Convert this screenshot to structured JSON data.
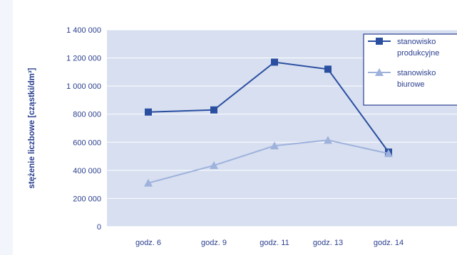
{
  "chart_data": {
    "type": "line",
    "title": "",
    "xlabel": "",
    "ylabel": "stężenie liczbowe [cząstki/dm³]",
    "categories": [
      "godz. 6",
      "godz. 9",
      "godz. 11",
      "godz. 13",
      "godz. 14"
    ],
    "ylim": [
      0,
      1400000
    ],
    "yticks": [
      0,
      200000,
      400000,
      600000,
      800000,
      1000000,
      1200000,
      1400000
    ],
    "ytick_labels": [
      "0",
      "200 000",
      "400 000",
      "600 000",
      "800 000",
      "1 000 000",
      "1 200 000",
      "1 400 000"
    ],
    "grid": true,
    "legend_position": "top-right",
    "series": [
      {
        "name": "stanowisko produkcyjne",
        "legend_lines": [
          "stanowisko",
          "produkcyjne"
        ],
        "marker": "square",
        "color": "#2a4fa0",
        "values": [
          815000,
          830000,
          1170000,
          1120000,
          530000
        ]
      },
      {
        "name": "stanowisko biurowe",
        "legend_lines": [
          "stanowisko",
          "biurowe"
        ],
        "marker": "triangle",
        "color": "#9fb2dc",
        "values": [
          310000,
          435000,
          575000,
          615000,
          520000
        ]
      }
    ],
    "plot_bg": "#d7dff0",
    "axis_text_color": "#2a3f8f"
  }
}
